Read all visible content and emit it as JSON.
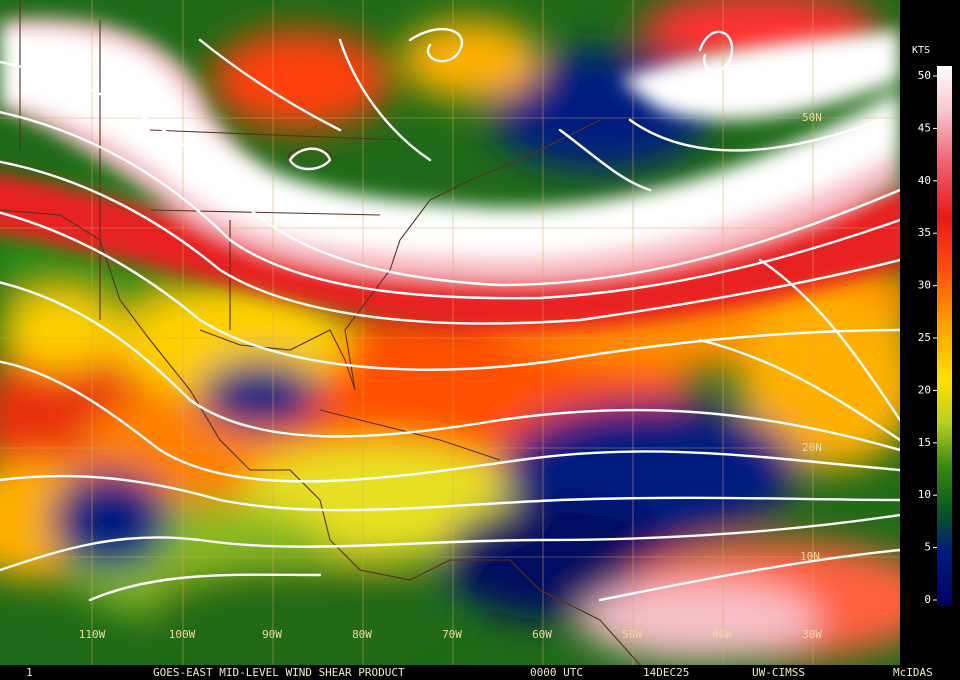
{
  "product": {
    "title": "GOES-EAST MID-LEVEL WIND SHEAR PRODUCT",
    "frame": "1",
    "time": "0000 UTC",
    "date": "14DEC25",
    "source": "UW-CIMSS",
    "software": "McIDAS"
  },
  "map": {
    "longitude_labels": [
      "110W",
      "100W",
      "90W",
      "80W",
      "70W",
      "60W",
      "50W",
      "40W",
      "30W"
    ],
    "latitude_labels": [
      "50N",
      "20N",
      "10N"
    ]
  },
  "colorbar": {
    "unit": "KTS",
    "range": [
      0,
      50
    ],
    "ticks": [
      0,
      5,
      10,
      15,
      20,
      25,
      30,
      35,
      40,
      45,
      50
    ]
  }
}
